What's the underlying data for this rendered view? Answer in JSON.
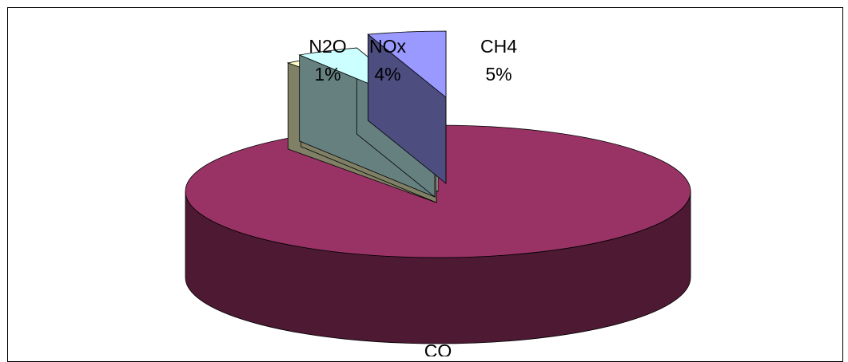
{
  "chart_data": {
    "type": "pie",
    "style": "3d-exploded",
    "title": "",
    "slices": [
      {
        "label": "CO",
        "percent_label": "",
        "value": 90,
        "color": "#993366",
        "side_color": "#4d1933"
      },
      {
        "label": "N2O",
        "percent_label": "1%",
        "value": 1,
        "color": "#ffffcc",
        "side_color": "#808066"
      },
      {
        "label": "NOx",
        "percent_label": "4%",
        "value": 4,
        "color": "#ccffff",
        "side_color": "#668080"
      },
      {
        "label": "CH4",
        "percent_label": "5%",
        "value": 5,
        "color": "#9999ff",
        "side_color": "#4d4d80"
      }
    ],
    "legend": "none",
    "data_labels": "category and percentage"
  }
}
